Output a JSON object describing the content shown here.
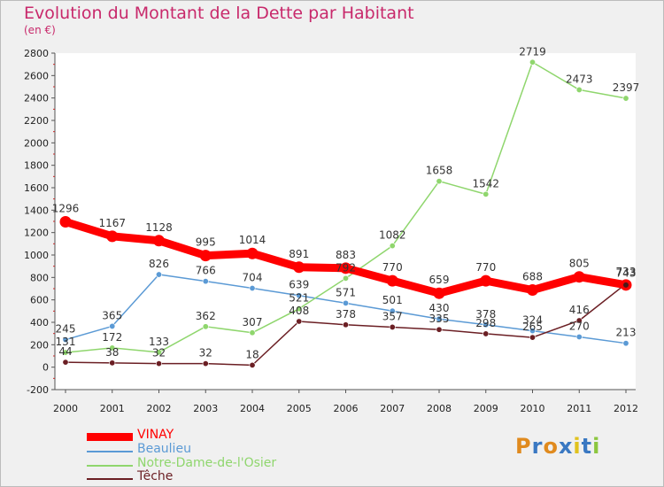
{
  "header": {
    "title": "Evolution du Montant de la Dette par Habitant",
    "subtitle": "(en €)"
  },
  "logo": {
    "letters": [
      "P",
      "r",
      "o",
      "x",
      "i",
      "t",
      "i"
    ],
    "colors": [
      "#e08a1e",
      "#3a78c2",
      "#e08a1e",
      "#3a78c2",
      "#e0c21e",
      "#3a78c2",
      "#8cc63f"
    ]
  },
  "chart_data": {
    "type": "line",
    "x": [
      "2000",
      "2001",
      "2002",
      "2003",
      "2004",
      "2005",
      "2006",
      "2007",
      "2008",
      "2009",
      "2010",
      "2011",
      "2012"
    ],
    "ylim": [
      -200,
      2800
    ],
    "yticks": [
      -200,
      0,
      200,
      400,
      600,
      800,
      1000,
      1200,
      1400,
      1600,
      1800,
      2000,
      2200,
      2400,
      2600,
      2800
    ],
    "grid": false,
    "legend_position": "bottom-left",
    "series": [
      {
        "name": "Beaulieu",
        "color": "#5b9ad5",
        "values": [
          245,
          365,
          826,
          766,
          704,
          639,
          571,
          501,
          430,
          378,
          324,
          270,
          213
        ]
      },
      {
        "name": "Notre-Dame-de-l'Osier",
        "color": "#8fd66d",
        "values": [
          131,
          172,
          133,
          362,
          307,
          521,
          792,
          1082,
          1658,
          1542,
          2719,
          2473,
          2397
        ]
      },
      {
        "name": "Têche",
        "color": "#6b1f24",
        "values": [
          44,
          38,
          32,
          32,
          18,
          408,
          378,
          357,
          335,
          298,
          265,
          416,
          743
        ]
      },
      {
        "name": "VINAY",
        "color": "#ff0000",
        "values": [
          1296,
          1167,
          1128,
          995,
          1014,
          891,
          883,
          770,
          659,
          770,
          688,
          805,
          733
        ]
      }
    ],
    "legend_order": [
      "VINAY",
      "Beaulieu",
      "Notre-Dame-de-l'Osier",
      "Têche"
    ]
  }
}
